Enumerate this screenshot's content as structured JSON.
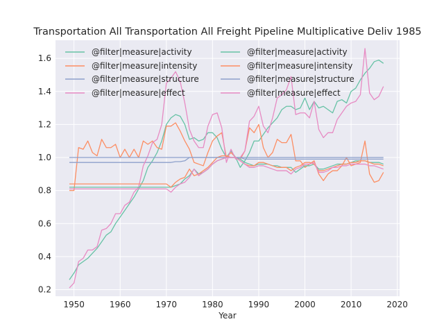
{
  "chart_data": {
    "type": "line",
    "title": "Transportation All Transportation All Freight Pipeline Multiplicative Deliv 1985",
    "xlabel": "Year",
    "ylabel": "",
    "xlim": [
      1946,
      2020.5
    ],
    "ylim": [
      0.16,
      1.71
    ],
    "xticks": [
      1950,
      1960,
      1970,
      1980,
      1990,
      2000,
      2010,
      2020
    ],
    "yticks": [
      0.2,
      0.4,
      0.6,
      0.8,
      1.0,
      1.2,
      1.4,
      1.6
    ],
    "xtick_labels": [
      "1950",
      "1960",
      "1970",
      "1980",
      "1990",
      "2000",
      "2010",
      "2020"
    ],
    "ytick_labels": [
      "0.2",
      "0.4",
      "0.6",
      "0.8",
      "1.0",
      "1.2",
      "1.4",
      "1.6"
    ],
    "grid": true,
    "legend_position": "top-left",
    "legend_columns": 2,
    "x": [
      1949,
      1950,
      1951,
      1952,
      1953,
      1954,
      1955,
      1956,
      1957,
      1958,
      1959,
      1960,
      1961,
      1962,
      1963,
      1964,
      1965,
      1966,
      1967,
      1968,
      1969,
      1970,
      1971,
      1972,
      1973,
      1974,
      1975,
      1976,
      1977,
      1978,
      1979,
      1980,
      1981,
      1982,
      1983,
      1984,
      1985,
      1986,
      1987,
      1988,
      1989,
      1990,
      1991,
      1992,
      1993,
      1994,
      1995,
      1996,
      1997,
      1998,
      1999,
      2000,
      2001,
      2002,
      2003,
      2004,
      2005,
      2006,
      2007,
      2008,
      2009,
      2010,
      2011,
      2012,
      2013,
      2014,
      2015,
      2016,
      2017
    ],
    "series": [
      {
        "name": "@filter|measure|activity",
        "color": "#66c2a5",
        "values": [
          0.26,
          0.3,
          0.35,
          0.37,
          0.39,
          0.42,
          0.45,
          0.49,
          0.53,
          0.55,
          0.6,
          0.64,
          0.68,
          0.72,
          0.76,
          0.81,
          0.86,
          0.94,
          0.98,
          1.03,
          1.1,
          1.2,
          1.24,
          1.26,
          1.25,
          1.2,
          1.11,
          1.12,
          1.1,
          1.11,
          1.15,
          1.15,
          1.12,
          1.05,
          1.0,
          1.04,
          1.0,
          0.94,
          0.98,
          1.03,
          1.1,
          1.1,
          1.14,
          1.18,
          1.21,
          1.24,
          1.29,
          1.31,
          1.31,
          1.29,
          1.3,
          1.36,
          1.29,
          1.34,
          1.3,
          1.31,
          1.29,
          1.27,
          1.34,
          1.35,
          1.33,
          1.4,
          1.42,
          1.47,
          1.51,
          1.54,
          1.58,
          1.59,
          1.57
        ]
      },
      {
        "name": "@filter|measure|intensity",
        "color": "#fc8d62",
        "values": [
          0.8,
          0.8,
          1.06,
          1.05,
          1.1,
          1.03,
          1.01,
          1.11,
          1.06,
          1.06,
          1.08,
          1.0,
          1.05,
          1.0,
          1.05,
          1.0,
          1.1,
          1.08,
          1.1,
          1.06,
          1.05,
          1.19,
          1.19,
          1.21,
          1.16,
          1.1,
          1.05,
          0.97,
          0.96,
          0.95,
          1.03,
          1.1,
          1.13,
          1.15,
          1.0,
          1.03,
          1.0,
          0.99,
          1.04,
          1.18,
          1.15,
          1.2,
          1.06,
          1.0,
          1.03,
          1.11,
          1.09,
          1.09,
          1.14,
          0.98,
          0.98,
          0.94,
          0.96,
          0.98,
          0.9,
          0.86,
          0.9,
          0.92,
          0.92,
          0.95,
          1.0,
          0.95,
          0.96,
          0.97,
          1.1,
          0.9,
          0.85,
          0.86,
          0.91
        ]
      },
      {
        "name": "@filter|measure|structure",
        "color": "#8da0cb",
        "values": [
          0.97,
          0.97,
          0.97,
          0.97,
          0.97,
          0.97,
          0.97,
          0.97,
          0.97,
          0.97,
          0.97,
          0.97,
          0.97,
          0.97,
          0.97,
          0.97,
          0.97,
          0.97,
          0.97,
          0.97,
          0.97,
          0.97,
          0.97,
          0.975,
          0.975,
          0.98,
          1.0,
          1.0,
          1.0,
          1.0,
          1.0,
          1.0,
          1.0,
          1.0,
          1.0,
          1.0,
          1.0,
          1.0,
          0.99,
          0.99,
          0.99,
          0.99,
          0.99,
          0.99,
          0.99,
          0.99,
          0.99,
          0.99,
          0.99,
          0.99,
          0.99,
          0.99,
          0.99,
          0.99,
          0.99,
          0.99,
          0.99,
          0.99,
          0.99,
          0.99,
          0.99,
          0.99,
          0.99,
          0.99,
          0.99,
          0.99,
          0.99,
          0.99,
          0.99
        ]
      },
      {
        "name": "@filter|measure|effect",
        "color": "#e78ac3",
        "values": [
          0.21,
          0.24,
          0.37,
          0.39,
          0.44,
          0.44,
          0.46,
          0.56,
          0.57,
          0.6,
          0.66,
          0.66,
          0.71,
          0.73,
          0.79,
          0.82,
          0.95,
          1.01,
          1.09,
          1.11,
          1.2,
          1.45,
          1.48,
          1.52,
          1.46,
          1.33,
          1.17,
          1.1,
          1.06,
          1.06,
          1.19,
          1.26,
          1.27,
          1.18,
          0.97,
          1.05,
          0.99,
          1.0,
          1.04,
          1.22,
          1.25,
          1.31,
          1.19,
          1.15,
          1.24,
          1.36,
          1.38,
          1.41,
          1.49,
          1.26,
          1.27,
          1.27,
          1.24,
          1.34,
          1.17,
          1.12,
          1.15,
          1.15,
          1.23,
          1.27,
          1.31,
          1.33,
          1.34,
          1.38,
          1.66,
          1.39,
          1.35,
          1.37,
          1.43
        ]
      },
      {
        "name": "@filter|measure|activity",
        "color": "#66c2a5",
        "values": [
          0.82,
          0.82,
          0.82,
          0.82,
          0.82,
          0.82,
          0.82,
          0.82,
          0.82,
          0.82,
          0.82,
          0.82,
          0.82,
          0.82,
          0.82,
          0.82,
          0.82,
          0.82,
          0.82,
          0.82,
          0.82,
          0.82,
          0.82,
          0.83,
          0.84,
          0.87,
          0.89,
          0.93,
          0.9,
          0.91,
          0.93,
          0.96,
          0.98,
          0.99,
          1.0,
          1.0,
          1.0,
          0.99,
          0.97,
          0.96,
          0.95,
          0.96,
          0.96,
          0.96,
          0.95,
          0.95,
          0.94,
          0.94,
          0.94,
          0.91,
          0.93,
          0.95,
          0.95,
          0.96,
          0.93,
          0.93,
          0.94,
          0.95,
          0.96,
          0.96,
          0.96,
          0.97,
          0.98,
          0.98,
          0.98,
          0.97,
          0.97,
          0.97,
          0.96
        ]
      },
      {
        "name": "@filter|measure|intensity",
        "color": "#fc8d62",
        "values": [
          0.84,
          0.84,
          0.84,
          0.84,
          0.84,
          0.84,
          0.84,
          0.84,
          0.84,
          0.84,
          0.84,
          0.84,
          0.84,
          0.84,
          0.84,
          0.84,
          0.84,
          0.84,
          0.84,
          0.84,
          0.84,
          0.84,
          0.82,
          0.85,
          0.87,
          0.88,
          0.93,
          0.89,
          0.9,
          0.92,
          0.94,
          0.97,
          1.0,
          1.01,
          1.01,
          1.0,
          1.0,
          0.98,
          0.96,
          0.95,
          0.95,
          0.97,
          0.97,
          0.96,
          0.95,
          0.94,
          0.94,
          0.94,
          0.92,
          0.94,
          0.95,
          0.97,
          0.97,
          0.96,
          0.92,
          0.92,
          0.93,
          0.94,
          0.95,
          0.96,
          0.96,
          0.97,
          0.97,
          0.98,
          0.98,
          0.97,
          0.96,
          0.96,
          0.95
        ]
      },
      {
        "name": "@filter|measure|structure",
        "color": "#8da0cb",
        "values": [
          1.0,
          1.0,
          1.0,
          1.0,
          1.0,
          1.0,
          1.0,
          1.0,
          1.0,
          1.0,
          1.0,
          1.0,
          1.0,
          1.0,
          1.0,
          1.0,
          1.0,
          1.0,
          1.0,
          1.0,
          1.0,
          1.0,
          1.0,
          1.0,
          1.0,
          1.0,
          1.0,
          1.0,
          1.0,
          1.0,
          1.0,
          1.0,
          1.0,
          1.0,
          1.0,
          1.0,
          1.0,
          1.0,
          1.0,
          1.0,
          1.0,
          1.0,
          1.0,
          1.0,
          1.0,
          1.0,
          1.0,
          1.0,
          1.0,
          1.0,
          1.0,
          1.0,
          1.0,
          1.0,
          1.0,
          1.0,
          1.0,
          1.0,
          1.0,
          1.0,
          1.0,
          1.0,
          1.0,
          1.0,
          1.0,
          1.0,
          1.0,
          1.0,
          1.0
        ]
      },
      {
        "name": "@filter|measure|effect",
        "color": "#e78ac3",
        "values": [
          0.81,
          0.81,
          0.81,
          0.81,
          0.81,
          0.81,
          0.81,
          0.81,
          0.81,
          0.81,
          0.81,
          0.81,
          0.81,
          0.81,
          0.81,
          0.81,
          0.81,
          0.81,
          0.81,
          0.81,
          0.81,
          0.81,
          0.79,
          0.82,
          0.84,
          0.85,
          0.88,
          0.93,
          0.89,
          0.91,
          0.93,
          0.96,
          0.98,
          0.99,
          1.0,
          1.0,
          1.0,
          0.98,
          0.96,
          0.94,
          0.94,
          0.95,
          0.95,
          0.94,
          0.93,
          0.92,
          0.92,
          0.92,
          0.9,
          0.93,
          0.94,
          0.96,
          0.96,
          0.97,
          0.91,
          0.91,
          0.92,
          0.94,
          0.94,
          0.95,
          0.95,
          0.96,
          0.96,
          0.96,
          0.96,
          0.95,
          0.95,
          0.94,
          0.93
        ]
      }
    ]
  }
}
